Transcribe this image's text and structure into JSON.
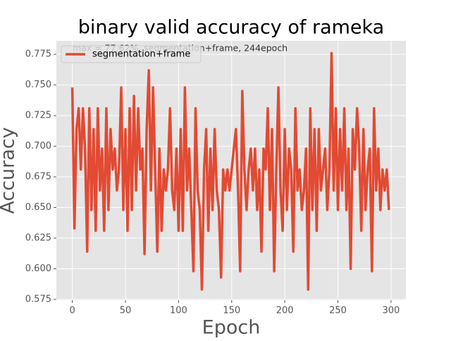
{
  "chart_data": {
    "type": "line",
    "title": "binary valid accuracy of rameka",
    "xlabel": "Epoch",
    "ylabel": "Accuracy",
    "annotation": "max = 77.62%, segmentation+frame, 244epoch",
    "legend": "upper left",
    "grid": true,
    "x": [
      0,
      2,
      4,
      6,
      8,
      10,
      12,
      14,
      16,
      18,
      20,
      22,
      24,
      26,
      28,
      30,
      32,
      34,
      36,
      38,
      40,
      42,
      44,
      46,
      48,
      50,
      52,
      54,
      56,
      58,
      60,
      62,
      64,
      66,
      68,
      70,
      72,
      74,
      76,
      78,
      80,
      82,
      84,
      86,
      88,
      90,
      92,
      94,
      96,
      98,
      100,
      102,
      104,
      106,
      108,
      110,
      112,
      114,
      116,
      118,
      120,
      122,
      124,
      126,
      128,
      130,
      132,
      134,
      136,
      138,
      140,
      142,
      144,
      146,
      148,
      150,
      152,
      154,
      156,
      158,
      160,
      162,
      164,
      166,
      168,
      170,
      172,
      174,
      176,
      178,
      180,
      182,
      184,
      186,
      188,
      190,
      192,
      194,
      196,
      198,
      200,
      202,
      204,
      206,
      208,
      210,
      212,
      214,
      216,
      218,
      220,
      222,
      224,
      226,
      228,
      230,
      232,
      234,
      236,
      238,
      240,
      242,
      244,
      246,
      248,
      250,
      252,
      254,
      256,
      258,
      260,
      262,
      264,
      266,
      268,
      270,
      272,
      274,
      276,
      278,
      280,
      282,
      284,
      286,
      288,
      290,
      292,
      294,
      296,
      298
    ],
    "series": [
      {
        "name": "segmentation+frame",
        "color": "#E24A33",
        "values": [
          0.748,
          0.633,
          0.714,
          0.731,
          0.681,
          0.731,
          0.698,
          0.614,
          0.731,
          0.648,
          0.714,
          0.631,
          0.731,
          0.664,
          0.698,
          0.631,
          0.731,
          0.648,
          0.714,
          0.681,
          0.698,
          0.664,
          0.681,
          0.748,
          0.648,
          0.714,
          0.631,
          0.731,
          0.648,
          0.741,
          0.664,
          0.731,
          0.681,
          0.698,
          0.612,
          0.714,
          0.762,
          0.664,
          0.748,
          0.681,
          0.614,
          0.698,
          0.631,
          0.681,
          0.664,
          0.681,
          0.731,
          0.664,
          0.648,
          0.698,
          0.631,
          0.714,
          0.631,
          0.748,
          0.664,
          0.698,
          0.648,
          0.598,
          0.731,
          0.664,
          0.648,
          0.583,
          0.681,
          0.714,
          0.631,
          0.698,
          0.648,
          0.714,
          0.664,
          0.648,
          0.593,
          0.681,
          0.664,
          0.681,
          0.664,
          0.681,
          0.698,
          0.714,
          0.664,
          0.598,
          0.745,
          0.681,
          0.648,
          0.681,
          0.698,
          0.664,
          0.698,
          0.648,
          0.681,
          0.614,
          0.698,
          0.681,
          0.731,
          0.648,
          0.714,
          0.598,
          0.681,
          0.748,
          0.664,
          0.631,
          0.714,
          0.648,
          0.698,
          0.681,
          0.614,
          0.731,
          0.664,
          0.681,
          0.648,
          0.664,
          0.698,
          0.583,
          0.731,
          0.648,
          0.714,
          0.631,
          0.714,
          0.664,
          0.681,
          0.698,
          0.648,
          0.681,
          0.776,
          0.664,
          0.731,
          0.648,
          0.714,
          0.664,
          0.731,
          0.648,
          0.698,
          0.6,
          0.714,
          0.681,
          0.731,
          0.698,
          0.631,
          0.714,
          0.648,
          0.681,
          0.698,
          0.598,
          0.731,
          0.664,
          0.698,
          0.648,
          0.681,
          0.664,
          0.681,
          0.648
        ]
      }
    ],
    "xlim": [
      -15,
      314
    ],
    "xticks": [
      0,
      50,
      100,
      150,
      200,
      250,
      300
    ],
    "ylim": [
      0.5744,
      0.786
    ],
    "yticks": [
      0.575,
      {
        "value": 0.6,
        "label": "0.600"
      },
      0.625,
      {
        "value": 0.65,
        "label": "0.650"
      },
      0.675,
      {
        "value": 0.7,
        "label": "0.700"
      },
      0.725,
      {
        "value": 0.75,
        "label": "0.750"
      },
      0.775
    ]
  }
}
